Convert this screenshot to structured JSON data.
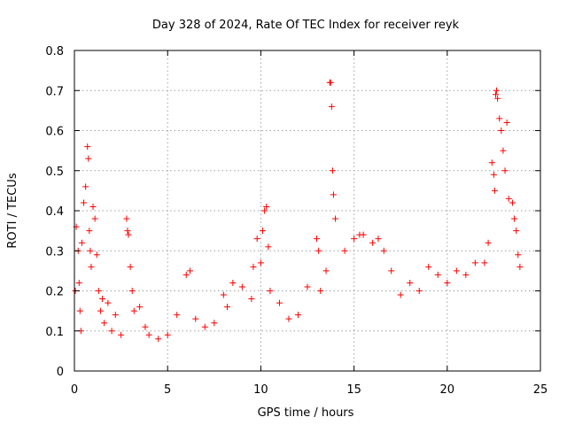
{
  "chart_data": {
    "type": "scatter",
    "title": "Day 328 of 2024, Rate Of TEC Index for receiver reyk",
    "xlabel": "GPS time / hours",
    "ylabel": "ROTI / TECUs",
    "xlim": [
      0,
      25
    ],
    "ylim": [
      0,
      0.8
    ],
    "x_ticks": [
      "0",
      "5",
      "10",
      "15",
      "20",
      "25"
    ],
    "y_ticks": [
      "0",
      "0.1",
      "0.2",
      "0.3",
      "0.4",
      "0.5",
      "0.6",
      "0.7",
      "0.8"
    ],
    "grid": true,
    "marker": "plus",
    "color": "#ff0000",
    "series": [
      {
        "x": [
          0.05,
          0.1,
          0.2,
          0.25,
          0.3,
          0.35,
          0.4,
          0.5,
          0.6,
          0.7,
          0.75,
          0.8,
          0.85,
          0.9,
          1.0,
          1.1,
          1.2,
          1.3,
          1.4,
          1.5,
          1.6,
          1.8,
          2.0,
          2.2,
          2.5,
          2.8,
          2.85,
          2.9,
          3.0,
          3.1,
          3.2,
          3.5,
          3.8,
          4.0,
          4.5,
          5.0,
          5.5,
          6.0,
          6.2,
          6.5,
          7.0,
          7.5,
          8.0,
          8.2,
          8.5,
          9.0,
          9.5,
          9.6,
          9.8,
          10.0,
          10.1,
          10.2,
          10.3,
          10.4,
          10.5,
          11.0,
          11.5,
          12.0,
          12.5,
          13.0,
          13.1,
          13.2,
          13.5,
          13.7,
          13.75,
          13.8,
          13.85,
          13.9,
          14.0,
          14.5,
          15.0,
          15.3,
          15.5,
          16.0,
          16.3,
          16.6,
          17.0,
          17.5,
          18.0,
          18.5,
          19.0,
          19.5,
          20.0,
          20.5,
          21.0,
          21.5,
          22.0,
          22.2,
          22.4,
          22.5,
          22.55,
          22.6,
          22.65,
          22.7,
          22.8,
          22.9,
          23.0,
          23.1,
          23.2,
          23.3,
          23.5,
          23.6,
          23.7,
          23.8,
          23.9
        ],
        "y": [
          0.2,
          0.36,
          0.3,
          0.22,
          0.15,
          0.1,
          0.32,
          0.42,
          0.46,
          0.56,
          0.53,
          0.35,
          0.3,
          0.26,
          0.41,
          0.38,
          0.29,
          0.2,
          0.15,
          0.18,
          0.12,
          0.17,
          0.1,
          0.14,
          0.09,
          0.38,
          0.35,
          0.34,
          0.26,
          0.2,
          0.15,
          0.16,
          0.11,
          0.09,
          0.08,
          0.09,
          0.14,
          0.24,
          0.25,
          0.13,
          0.11,
          0.12,
          0.19,
          0.16,
          0.22,
          0.21,
          0.18,
          0.26,
          0.33,
          0.27,
          0.35,
          0.4,
          0.41,
          0.31,
          0.2,
          0.17,
          0.13,
          0.14,
          0.21,
          0.33,
          0.3,
          0.2,
          0.25,
          0.72,
          0.72,
          0.66,
          0.5,
          0.44,
          0.38,
          0.3,
          0.33,
          0.34,
          0.34,
          0.32,
          0.33,
          0.3,
          0.25,
          0.19,
          0.22,
          0.2,
          0.26,
          0.24,
          0.22,
          0.25,
          0.24,
          0.27,
          0.27,
          0.32,
          0.52,
          0.49,
          0.45,
          0.69,
          0.7,
          0.68,
          0.63,
          0.6,
          0.55,
          0.5,
          0.62,
          0.43,
          0.42,
          0.38,
          0.35,
          0.29,
          0.26
        ]
      }
    ]
  }
}
